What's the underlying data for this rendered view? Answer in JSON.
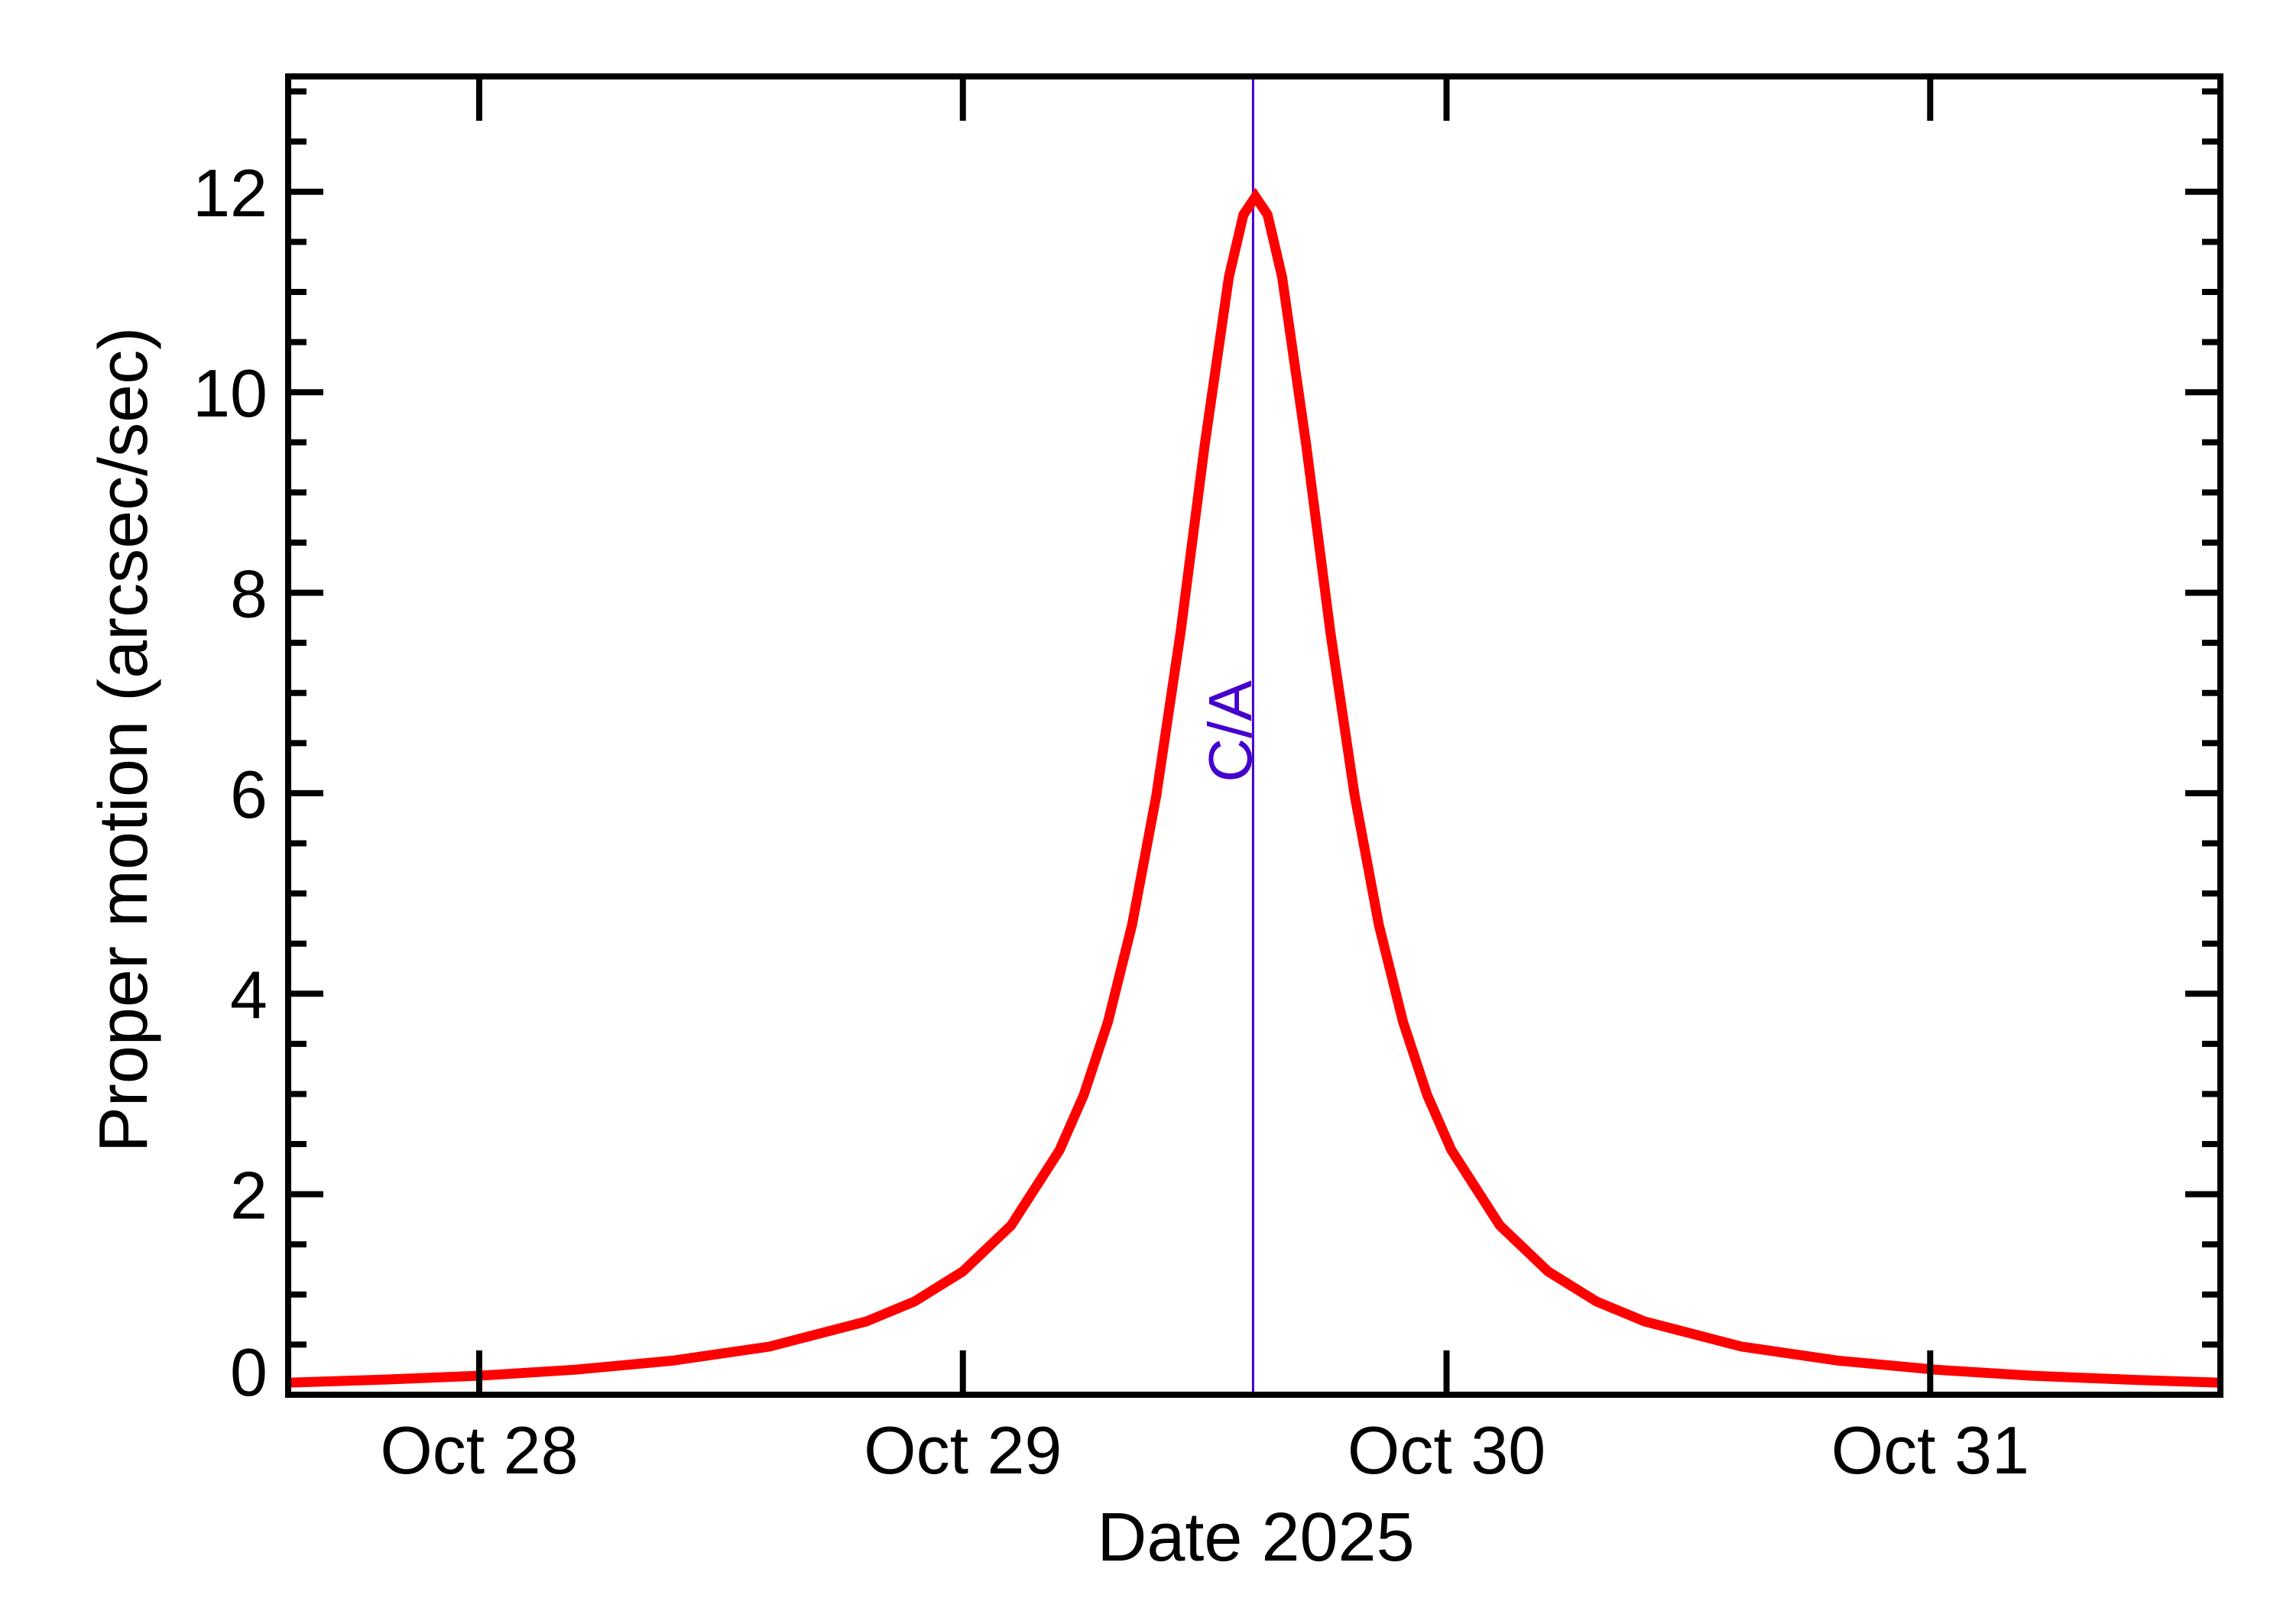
{
  "chart_data": {
    "type": "line",
    "title": "",
    "xlabel": "Date 2025",
    "ylabel": "Proper motion (arcsec/sec)",
    "x_unit": "days since Oct 28 2025 00:00",
    "xlim": [
      -0.395,
      3.6
    ],
    "ylim": [
      0,
      13.15
    ],
    "grid": false,
    "legend": null,
    "x_ticks": [
      {
        "value": 0,
        "label": "Oct 28"
      },
      {
        "value": 1,
        "label": "Oct 29"
      },
      {
        "value": 2,
        "label": "Oct 30"
      },
      {
        "value": 3,
        "label": "Oct 31"
      }
    ],
    "y_ticks": [
      {
        "value": 0,
        "label": "0"
      },
      {
        "value": 2,
        "label": "2"
      },
      {
        "value": 4,
        "label": "4"
      },
      {
        "value": 6,
        "label": "6"
      },
      {
        "value": 8,
        "label": "8"
      },
      {
        "value": 10,
        "label": "10"
      },
      {
        "value": 12,
        "label": "12"
      }
    ],
    "y_minor_step": 0.5,
    "annotations": [
      {
        "type": "vline",
        "x": 1.6,
        "label": "C/A",
        "color": "#4400cc"
      }
    ],
    "series": [
      {
        "name": "Proper motion",
        "color": "#ff0000",
        "x": [
          -0.395,
          -0.2,
          0.0,
          0.2,
          0.4,
          0.6,
          0.8,
          0.9,
          1.0,
          1.1,
          1.2,
          1.25,
          1.3,
          1.35,
          1.4,
          1.45,
          1.5,
          1.55,
          1.58,
          1.605,
          1.63,
          1.66,
          1.71,
          1.76,
          1.81,
          1.86,
          1.91,
          1.96,
          2.01,
          2.11,
          2.21,
          2.31,
          2.41,
          2.61,
          2.81,
          3.01,
          3.21,
          3.41,
          3.6
        ],
        "y": [
          0.12,
          0.15,
          0.19,
          0.25,
          0.34,
          0.48,
          0.73,
          0.93,
          1.23,
          1.69,
          2.44,
          2.99,
          3.72,
          4.69,
          5.98,
          7.6,
          9.47,
          11.15,
          11.77,
          11.95,
          11.77,
          11.15,
          9.47,
          7.6,
          5.98,
          4.69,
          3.72,
          2.99,
          2.44,
          1.69,
          1.23,
          0.93,
          0.73,
          0.48,
          0.34,
          0.25,
          0.19,
          0.15,
          0.12
        ]
      }
    ]
  },
  "colors": {
    "curve": "#ff0000",
    "ca_line": "#4400cc",
    "axes": "#000000",
    "background": "#ffffff"
  }
}
